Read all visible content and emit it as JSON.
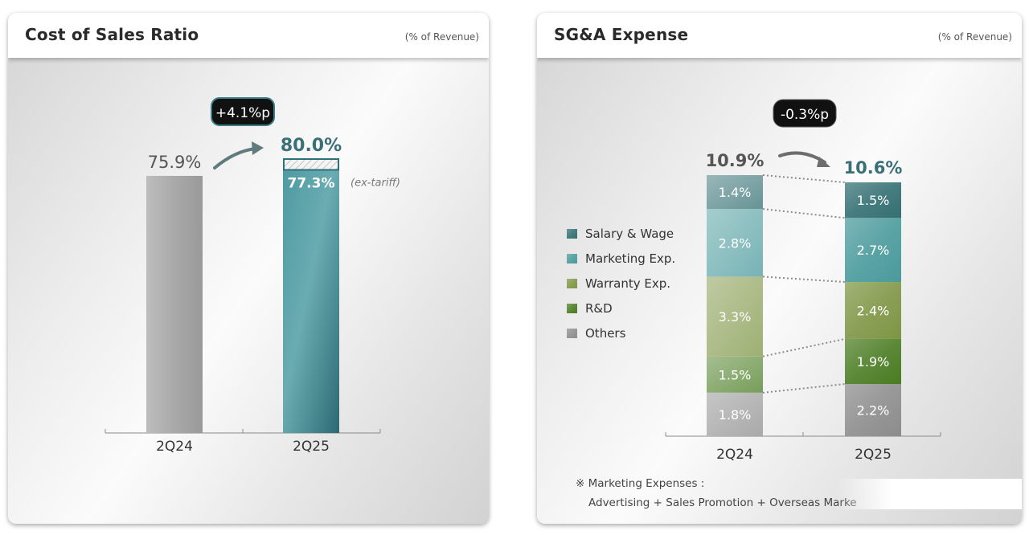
{
  "chart_data": [
    {
      "type": "bar",
      "title": "Cost of Sales Ratio",
      "unit_note": "(% of Revenue)",
      "categories": [
        "2Q24",
        "2Q25"
      ],
      "values": [
        75.9,
        80.0
      ],
      "value_labels": [
        "75.9%",
        "80.0%"
      ],
      "ex_tariff": {
        "value": 77.3,
        "label": "77.3%",
        "note": "(ex-tariff)"
      },
      "change_badge": "+4.1%p",
      "colors": {
        "2Q24": "#a6a6a6",
        "2Q25": "#3e8088",
        "accent_text": "#3a6f78"
      }
    },
    {
      "type": "bar",
      "stacked": true,
      "title": "SG&A Expense",
      "unit_note": "(% of Revenue)",
      "categories": [
        "2Q24",
        "2Q25"
      ],
      "totals": [
        10.9,
        10.6
      ],
      "total_labels": [
        "10.9%",
        "10.6%"
      ],
      "change_badge": "-0.3%p",
      "series": [
        {
          "name": "Salary & Wage",
          "values": [
            1.4,
            1.5
          ],
          "labels": [
            "1.4%",
            "1.5%"
          ],
          "color": "#336f72"
        },
        {
          "name": "Marketing Exp.",
          "values": [
            2.8,
            2.7
          ],
          "labels": [
            "2.8%",
            "2.7%"
          ],
          "color": "#4a9a9c"
        },
        {
          "name": "Warranty Exp.",
          "values": [
            3.3,
            2.4
          ],
          "labels": [
            "3.3%",
            "2.4%"
          ],
          "color": "#7e9544"
        },
        {
          "name": "R&D",
          "values": [
            1.5,
            1.9
          ],
          "labels": [
            "1.5%",
            "1.9%"
          ],
          "color": "#4a7c22"
        },
        {
          "name": "Others",
          "values": [
            1.8,
            2.2
          ],
          "labels": [
            "1.8%",
            "2.2%"
          ],
          "color": "#8c8c8c"
        }
      ],
      "footnote": {
        "line1": "※ Marketing Expenses :",
        "line2": "Advertising + Sales Promotion + Overseas Marke"
      }
    }
  ]
}
